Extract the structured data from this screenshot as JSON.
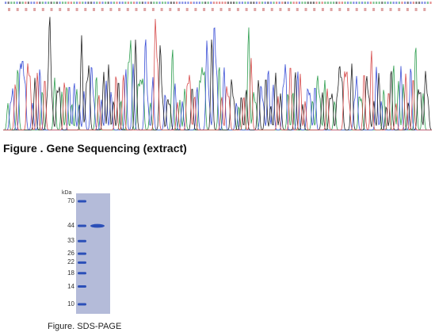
{
  "sequencing": {
    "caption": "Figure . Gene Sequencing (extract)",
    "colors": {
      "A": "#2e9e4f",
      "C": "#3a4fd6",
      "G": "#222222",
      "T": "#d64a4a"
    }
  },
  "sds_page": {
    "caption": "Figure. SDS-PAGE",
    "unit": "kDa",
    "markers": [
      "70",
      "44",
      "33",
      "26",
      "22",
      "18",
      "14",
      "10"
    ],
    "sample_band": "44",
    "gel_color": "#b4bbd9",
    "marker_color": "#2b4fb8"
  }
}
